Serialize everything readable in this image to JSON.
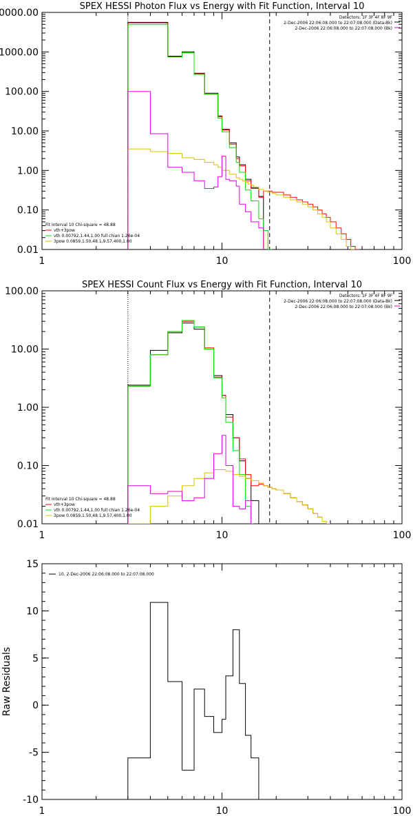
{
  "colors": {
    "data": "#000000",
    "total": "#ff0000",
    "vth": "#00e000",
    "pow": "#d8c000",
    "bk": "#e000e0"
  },
  "chart_data": [
    {
      "type": "line",
      "title": "SPEX HESSI Photon Flux vs Energy with Fit Function, Interval 10",
      "xscale": "log",
      "yscale": "log",
      "xlim": [
        1,
        100
      ],
      "ylim": [
        0.01,
        10000
      ],
      "xticks": [
        "1",
        "10",
        "100"
      ],
      "yticks": [
        "10000.00",
        "1000.00",
        "100.00",
        "10.00",
        "1.00",
        "0.10",
        "0.01"
      ],
      "legend_tr": [
        "Detectors: 1F 3F 4F 8F 9F",
        "2-Dec-2006 22:06:08.000 to 22:07:08.000 (Data-Bk)",
        "2-Dec-2006 22:06:08.000 to 22:07:08.000 (Bk)"
      ],
      "legend_bl": [
        "Fit Interval 10   Chi-square = 48.88",
        "vth+3pow",
        "vth 0.00792,1.44,1.00   full chian 1.26e-04",
        "3pow 0.0859,1.50,48.1,9.57,400,1.00"
      ],
      "vlines": [
        {
          "x": 3,
          "style": "dotted"
        },
        {
          "x": 18.4,
          "style": "dashed"
        }
      ],
      "edges": [
        3,
        3.5,
        4,
        4.5,
        5,
        5.5,
        6,
        6.5,
        7,
        7.5,
        8,
        8.5,
        9,
        9.5,
        10,
        10.5,
        11,
        11.5,
        12,
        12.5,
        13,
        13.5,
        14,
        14.5,
        15,
        16,
        17,
        18,
        19,
        20,
        22,
        24,
        26,
        28,
        30,
        32,
        34,
        36,
        38,
        40,
        43,
        46,
        49,
        52,
        55,
        58
      ],
      "series": [
        {
          "name": "data",
          "color_key": "data",
          "values": [
            5600,
            5600,
            5600,
            5600,
            780,
            780,
            1000,
            1000,
            290,
            290,
            90,
            90,
            90,
            24,
            11,
            11,
            5,
            5,
            2.2,
            1.4,
            1.4,
            0.6,
            0.6,
            0.37,
            0.37,
            0.22
          ]
        },
        {
          "name": "vth+3pow",
          "color_key": "total",
          "values": [
            5400,
            5400,
            5400,
            5400,
            750,
            750,
            950,
            950,
            280,
            280,
            85,
            85,
            85,
            23,
            10.5,
            10.5,
            4.6,
            4.6,
            2.0,
            1.3,
            1.3,
            0.55,
            0.55,
            0.35,
            0.35,
            0.21,
            0.3,
            0.3,
            0.28,
            0.28,
            0.24,
            0.21,
            0.18,
            0.16,
            0.14,
            0.12,
            0.1,
            0.08,
            0.065,
            0.05,
            0.035,
            0.025,
            0.018,
            0.012,
            0.01
          ]
        },
        {
          "name": "vth",
          "color_key": "vth",
          "values": [
            4900,
            4900,
            4900,
            4900,
            740,
            740,
            950,
            950,
            270,
            270,
            85,
            85,
            85,
            21,
            9.5,
            9.5,
            3.8,
            3.8,
            1.6,
            0.9,
            0.9,
            0.32,
            0.32,
            0.17,
            0.17,
            0.06,
            0.03,
            0.01
          ]
        },
        {
          "name": "3pow",
          "color_key": "pow",
          "values": [
            3.5,
            3.5,
            3.0,
            3.0,
            2.7,
            2.7,
            2.1,
            2.1,
            1.9,
            1.9,
            1.6,
            1.6,
            1.4,
            1.2,
            1.0,
            1.0,
            0.8,
            0.8,
            0.65,
            0.6,
            0.55,
            0.5,
            0.45,
            0.42,
            0.38,
            0.33,
            0.3,
            0.28,
            0.26,
            0.24,
            0.21,
            0.18,
            0.16,
            0.14,
            0.12,
            0.1,
            0.08,
            0.065,
            0.05,
            0.035,
            0.025,
            0.018,
            0.012,
            0.01
          ]
        },
        {
          "name": "Bk",
          "color_key": "bk",
          "values": [
            100,
            100,
            8.5,
            8.5,
            1.2,
            1.2,
            0.9,
            0.9,
            0.55,
            0.55,
            0.35,
            0.35,
            0.38,
            0.7,
            2.3,
            0.6,
            0.55,
            0.55,
            0.4,
            0.14,
            0.14,
            0.09,
            0.09,
            0.05,
            0.05,
            0.035
          ]
        }
      ]
    },
    {
      "type": "line",
      "title": "SPEX HESSI Count Flux vs Energy with Fit Function, Interval 10",
      "xscale": "log",
      "yscale": "log",
      "xlim": [
        1,
        100
      ],
      "ylim": [
        0.01,
        100
      ],
      "xticks": [
        "1",
        "10",
        "100"
      ],
      "yticks": [
        "100.00",
        "10.00",
        "1.00",
        "0.10",
        "0.01"
      ],
      "legend_tr": [
        "Detectors: 1F 3F 4F 8F 9F",
        "2-Dec-2006 22:06:08.000 to 22:07:08.000 (Data-Bk)",
        "2-Dec-2006 22:06:08.000 to 22:07:08.000 (Bk)"
      ],
      "legend_bl": [
        "Fit Interval 10   Chi-square = 48.88",
        "vth+3pow",
        "vth 0.00792,1.44,1.00   full chian 1.26e-04",
        "3pow 0.0859,1.50,48.1,9.57,400,1.00"
      ],
      "vlines": [
        {
          "x": 3,
          "style": "dotted"
        },
        {
          "x": 18.4,
          "style": "dashed"
        }
      ],
      "edges": [
        3,
        3.5,
        4,
        4.5,
        5,
        5.5,
        6,
        6.5,
        7,
        7.5,
        8,
        8.5,
        9,
        9.5,
        10,
        10.5,
        11,
        11.5,
        12,
        12.5,
        13,
        13.5,
        14,
        14.5,
        15,
        16,
        17,
        18,
        19,
        20,
        22,
        24,
        26,
        28,
        30,
        32,
        34,
        36,
        38,
        40,
        43,
        46,
        49,
        52,
        55
      ],
      "series": [
        {
          "name": "data",
          "color_key": "data",
          "values": [
            2.4,
            2.4,
            9.5,
            9.5,
            19,
            19,
            28,
            28,
            22,
            22,
            10,
            10,
            3.5,
            3.5,
            1.6,
            0.75,
            0.75,
            0.3,
            0.3,
            0.12,
            0.12,
            0.06,
            0.06,
            0.025,
            0.025,
            0.01
          ]
        },
        {
          "name": "vth+3pow",
          "color_key": "total",
          "values": [
            2.3,
            2.3,
            8,
            8,
            20,
            20,
            30,
            30,
            24,
            24,
            10.5,
            10.5,
            3.3,
            3.3,
            1.6,
            0.68,
            0.68,
            0.3,
            0.3,
            0.13,
            0.13,
            0.07,
            0.07,
            0.045,
            0.045,
            0.048,
            0.045,
            0.042,
            0.04,
            0.038,
            0.033,
            0.028,
            0.024,
            0.021,
            0.018,
            0.015,
            0.013,
            0.011,
            0.01
          ]
        },
        {
          "name": "vth",
          "color_key": "vth",
          "values": [
            2.3,
            2.3,
            8,
            8,
            20,
            20,
            31,
            31,
            24,
            24,
            10,
            10,
            3.2,
            3.2,
            1.45,
            0.55,
            0.55,
            0.18,
            0.18,
            0.07,
            0.07,
            0.02,
            0.02,
            0.01
          ]
        },
        {
          "name": "3pow",
          "color_key": "pow",
          "values": [
            0.01,
            0.01,
            0.02,
            0.02,
            0.03,
            0.03,
            0.045,
            0.045,
            0.06,
            0.06,
            0.075,
            0.075,
            0.085,
            0.085,
            0.085,
            0.08,
            0.08,
            0.07,
            0.07,
            0.065,
            0.065,
            0.06,
            0.06,
            0.055,
            0.055,
            0.05,
            0.045,
            0.042,
            0.04,
            0.038,
            0.033,
            0.028,
            0.024,
            0.021,
            0.018,
            0.015,
            0.013,
            0.011,
            0.01
          ]
        },
        {
          "name": "Bk",
          "color_key": "bk",
          "values": [
            0.045,
            0.045,
            0.033,
            0.033,
            0.036,
            0.036,
            0.025,
            0.025,
            0.028,
            0.028,
            0.06,
            0.06,
            0.16,
            0.16,
            0.33,
            0.1,
            0.1,
            0.02,
            0.02,
            0.018,
            0.018,
            0.025,
            0.025,
            0.01
          ]
        }
      ]
    },
    {
      "type": "line",
      "title": "",
      "xscale": "log",
      "yscale": "linear",
      "xlim": [
        1,
        100
      ],
      "ylim": [
        -10,
        15
      ],
      "xticks": [
        "1",
        "10",
        "100"
      ],
      "yticks": [
        "15",
        "10",
        "5",
        "0",
        "-5",
        "-10"
      ],
      "ylabel": "Raw Residuals",
      "legend_tl": [
        "10.  2-Dec-2006 22:06:08.000 to 22:07:08.000"
      ],
      "edges": [
        3,
        3.5,
        4,
        4.5,
        5,
        5.5,
        6,
        6.5,
        7,
        7.5,
        8,
        8.5,
        9,
        9.5,
        10,
        10.5,
        11,
        11.5,
        12,
        12.5,
        13,
        13.5,
        14,
        14.5,
        15,
        16,
        17,
        18,
        19,
        20,
        22,
        24,
        26,
        28,
        30,
        32,
        34,
        36,
        38,
        40,
        43,
        46,
        49,
        52,
        55,
        58
      ],
      "series": [
        {
          "name": "residuals",
          "color_key": "data",
          "values": [
            -5.6,
            -5.6,
            10.9,
            10.9,
            2.5,
            2.5,
            -6.9,
            -6.9,
            1.7,
            1.7,
            -1.2,
            -1.2,
            -2.9,
            -2.9,
            -1.5,
            3.1,
            3.1,
            8.0,
            8.0,
            2.3,
            2.3,
            -3.2,
            -3.2,
            -5.6,
            -5.6,
            -10
          ]
        }
      ]
    }
  ]
}
